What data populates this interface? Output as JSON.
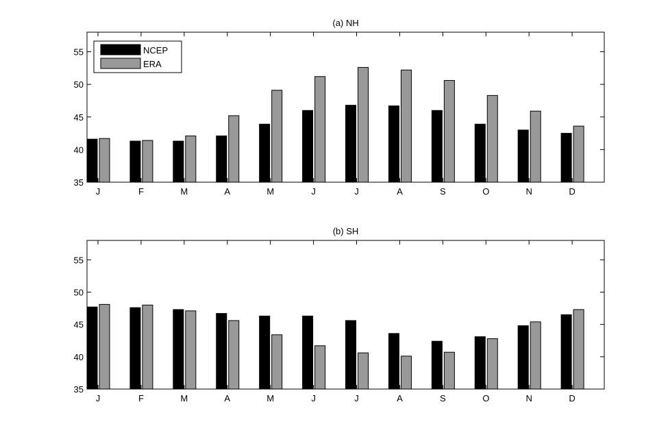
{
  "chart_data": [
    {
      "type": "bar",
      "title": "(a) NH",
      "categories": [
        "J",
        "F",
        "M",
        "A",
        "M",
        "J",
        "J",
        "A",
        "S",
        "O",
        "N",
        "D"
      ],
      "series": [
        {
          "name": "NCEP",
          "color": "#000000",
          "values": [
            41.6,
            41.3,
            41.3,
            42.1,
            43.9,
            46.0,
            46.8,
            46.7,
            46.0,
            43.9,
            43.0,
            42.5
          ]
        },
        {
          "name": "ERA",
          "color": "#999999",
          "values": [
            41.7,
            41.4,
            42.1,
            45.2,
            49.1,
            51.2,
            52.6,
            52.2,
            50.6,
            48.3,
            45.9,
            43.6
          ]
        }
      ],
      "ylim": [
        35,
        58
      ],
      "yticks": [
        35,
        40,
        45,
        50,
        55
      ],
      "legend": "top-left",
      "grid": false
    },
    {
      "type": "bar",
      "title": "(b) SH",
      "categories": [
        "J",
        "F",
        "M",
        "A",
        "M",
        "J",
        "J",
        "A",
        "S",
        "O",
        "N",
        "D"
      ],
      "series": [
        {
          "name": "NCEP",
          "color": "#000000",
          "values": [
            47.7,
            47.6,
            47.3,
            46.7,
            46.3,
            46.3,
            45.6,
            43.6,
            42.4,
            43.1,
            44.8,
            46.5
          ]
        },
        {
          "name": "ERA",
          "color": "#999999",
          "values": [
            48.1,
            48.0,
            47.1,
            45.6,
            43.4,
            41.7,
            40.6,
            40.1,
            40.7,
            42.8,
            45.4,
            47.3
          ]
        }
      ],
      "ylim": [
        35,
        58
      ],
      "yticks": [
        35,
        40,
        45,
        50,
        55
      ],
      "grid": false
    }
  ]
}
